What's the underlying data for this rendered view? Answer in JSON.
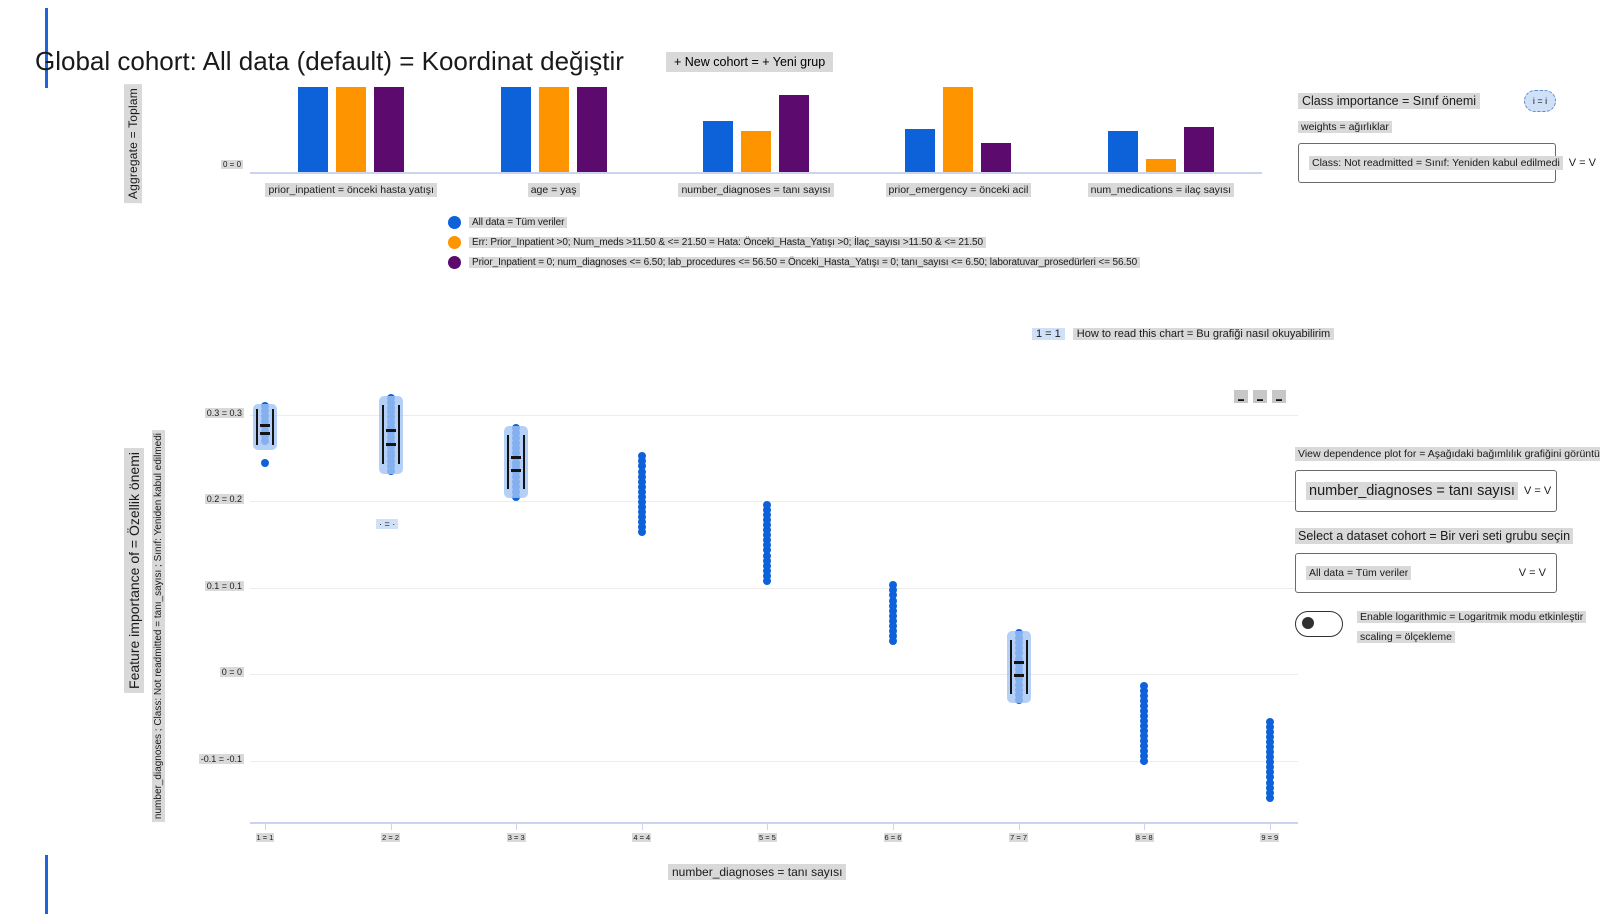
{
  "header": {
    "title": "Global cohort: All data (default) = Koordinat değiştir",
    "new_cohort_button": "+ New cohort = + Yeni grup"
  },
  "class_panel": {
    "title": "Class importance = Sınıf önemi",
    "info_icon": "i = i",
    "weights_label": "weights = ağırlıklar",
    "class_dropdown_value": "Class: Not readmitted = Sınıf: Yeniden kabul edilmedi",
    "dropdown_chevron": "V = V"
  },
  "how_to_read": {
    "info_badge": "1 = 1",
    "text": "How to read this chart = Bu grafiği nasıl okuyabilirim"
  },
  "dependence_panel": {
    "view_label": "View dependence plot for = Aşağıdaki bağımlılık grafiğini görüntüle:",
    "feature_dropdown_value": "number_diagnoses = tanı sayısı",
    "cohort_label": "Select a dataset cohort = Bir veri seti grubu seçin",
    "cohort_dropdown_value": "All data = Tüm veriler",
    "dropdown_chevron": "V = V",
    "log_toggle_label_line1": "Enable logarithmic = Logaritmik modu etkinleştir",
    "log_toggle_label_line2": "scaling = ölçekleme",
    "log_toggle_state": "off"
  },
  "colors": {
    "series_blue": "#0E62D9",
    "series_orange": "#FD9400",
    "series_purple": "#5C0A6E",
    "highlight_grey": "#D9D9D9",
    "highlight_blue": "#CFE0F7",
    "axis_line": "#CCD3F0",
    "gridline": "#ECECEC",
    "selection_box": "#A3C4F4"
  },
  "chart_data": [
    {
      "type": "bar",
      "ylabel": "Aggregate = Toplam",
      "yticks": [
        "0 = 0"
      ],
      "categories": [
        "prior_inpatient = önceki hasta yatışı",
        "age = yaş",
        "number_diagnoses = tanı sayısı",
        "prior_emergency = önceki acil",
        "num_medications = ilaç sayısı"
      ],
      "series": [
        {
          "name": "All data = Tüm veriler",
          "color": "#0E62D9",
          "values": [
            1.0,
            1.0,
            0.6,
            0.51,
            0.48
          ]
        },
        {
          "name": "Err: Prior_Inpatient >0; Num_meds >11.50 & <= 21.50 = Hata: Önceki_Hasta_Yatışı >0; İlaç_sayısı >11.50 & <= 21.50",
          "color": "#FD9400",
          "values": [
            1.0,
            1.0,
            0.48,
            1.0,
            0.15
          ]
        },
        {
          "name": "Prior_Inpatient = 0; num_diagnoses <= 6.50; lab_procedures <= 56.50 = Önceki_Hasta_Yatışı = 0; tanı_sayısı <= 6.50; laboratuvar_prosedürleri <= 56.50",
          "color": "#5C0A6E",
          "values": [
            1.0,
            1.0,
            0.91,
            0.34,
            0.53
          ]
        }
      ],
      "value_note": "bar heights relative to tallest bar; only y tick shown is 0",
      "legend_position": "bottom-left",
      "grid": false
    },
    {
      "type": "scatter",
      "xlabel": "number_diagnoses = tanı sayısı",
      "ylabel_main": "Feature importance of = Özellik önemi",
      "ylabel_sub": "number_diagnoses ; Class: Not readmitted = tanı_sayısı ; Sınıf: Yeniden kabul edilmedi",
      "point_color": "#0E62D9",
      "grid": true,
      "ylim": [
        -0.17,
        0.33
      ],
      "xticks": [
        {
          "x": 1,
          "label": "1 = 1"
        },
        {
          "x": 2,
          "label": "2 = 2"
        },
        {
          "x": 3,
          "label": "3 = 3"
        },
        {
          "x": 4,
          "label": "4 = 4"
        },
        {
          "x": 5,
          "label": "5 = 5"
        },
        {
          "x": 6,
          "label": "6 = 6"
        },
        {
          "x": 7,
          "label": "7 = 7"
        },
        {
          "x": 8,
          "label": "8 = 8"
        },
        {
          "x": 9,
          "label": "9 = 9"
        }
      ],
      "yticks": [
        {
          "value": 0.3,
          "label": "0.3 = 0.3"
        },
        {
          "value": 0.2,
          "label": "0.2 = 0.2"
        },
        {
          "value": 0.1,
          "label": "0.1 = 0.1"
        },
        {
          "value": 0,
          "label": "0 = 0"
        },
        {
          "value": -0.1,
          "label": "-0.1 = -0.1"
        }
      ],
      "columns": [
        {
          "x": 1,
          "importance_min": 0.27,
          "importance_max": 0.31,
          "outliers": [
            0.245
          ],
          "selection_box": [
            0.266,
            0.306
          ]
        },
        {
          "x": 2,
          "importance_min": 0.235,
          "importance_max": 0.32,
          "outliers": [],
          "selection_box": [
            0.239,
            0.315
          ]
        },
        {
          "x": 3,
          "importance_min": 0.205,
          "importance_max": 0.285,
          "outliers": [],
          "selection_box": [
            0.211,
            0.28
          ]
        },
        {
          "x": 4,
          "importance_min": 0.165,
          "importance_max": 0.252,
          "outliers": [],
          "selection_box": null
        },
        {
          "x": 5,
          "importance_min": 0.108,
          "importance_max": 0.196,
          "outliers": [],
          "selection_box": null
        },
        {
          "x": 6,
          "importance_min": 0.038,
          "importance_max": 0.103,
          "outliers": [],
          "selection_box": null
        },
        {
          "x": 7,
          "importance_min": -0.03,
          "importance_max": 0.048,
          "outliers": [],
          "selection_box": [
            -0.026,
            0.043
          ]
        },
        {
          "x": 8,
          "importance_min": -0.1,
          "importance_max": -0.014,
          "outliers": [],
          "selection_box": null
        },
        {
          "x": 9,
          "importance_min": -0.143,
          "importance_max": -0.055,
          "outliers": [],
          "selection_box": null
        }
      ],
      "annotation_badge": "· = ·",
      "modebar_buttons": [
        "▬",
        "▬",
        "▬"
      ]
    }
  ]
}
